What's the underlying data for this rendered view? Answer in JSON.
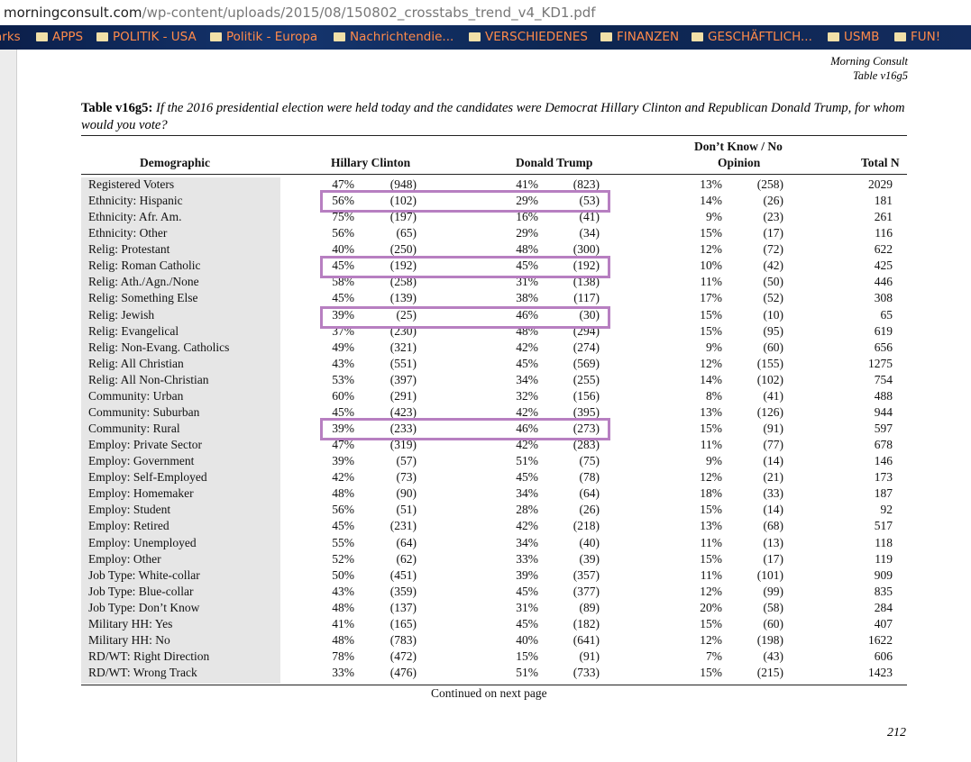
{
  "browser": {
    "url_domain": "morningconsult.com",
    "url_path": "/wp-content/uploads/2015/08/150802_crosstabs_trend_v4_KD1.pdf",
    "bookmarks": [
      "arks",
      "APPS",
      "POLITIK - USA",
      "Politik - Europa",
      "Nachrichtendie...",
      "VERSCHIEDENES",
      "FINANZEN",
      "GESCHÄFTLICH...",
      "USMB",
      "FUN!"
    ]
  },
  "header": {
    "org": "Morning Consult",
    "table_id": "Table v16g5"
  },
  "caption": {
    "label": "Table v16g5:",
    "text": "If the 2016 presidential election were held today and the candidates were Democrat Hillary Clinton and Republican Donald Trump, for whom would you vote?"
  },
  "table": {
    "columns": [
      "Demographic",
      "Hillary Clinton",
      "Donald Trump",
      "Don’t Know / No",
      "Opinion",
      "Total N"
    ],
    "rows": [
      [
        "Registered Voters",
        "47%",
        "(948)",
        "41%",
        "(823)",
        "13%",
        "(258)",
        "2029"
      ],
      [
        "Ethnicity: Hispanic",
        "56%",
        "(102)",
        "29%",
        "(53)",
        "14%",
        "(26)",
        "181"
      ],
      [
        "Ethnicity: Afr. Am.",
        "75%",
        "(197)",
        "16%",
        "(41)",
        "9%",
        "(23)",
        "261"
      ],
      [
        "Ethnicity: Other",
        "56%",
        "(65)",
        "29%",
        "(34)",
        "15%",
        "(17)",
        "116"
      ],
      [
        "Relig: Protestant",
        "40%",
        "(250)",
        "48%",
        "(300)",
        "12%",
        "(72)",
        "622"
      ],
      [
        "Relig: Roman Catholic",
        "45%",
        "(192)",
        "45%",
        "(192)",
        "10%",
        "(42)",
        "425"
      ],
      [
        "Relig: Ath./Agn./None",
        "58%",
        "(258)",
        "31%",
        "(138)",
        "11%",
        "(50)",
        "446"
      ],
      [
        "Relig: Something Else",
        "45%",
        "(139)",
        "38%",
        "(117)",
        "17%",
        "(52)",
        "308"
      ],
      [
        "Relig: Jewish",
        "39%",
        "(25)",
        "46%",
        "(30)",
        "15%",
        "(10)",
        "65"
      ],
      [
        "Relig: Evangelical",
        "37%",
        "(230)",
        "48%",
        "(294)",
        "15%",
        "(95)",
        "619"
      ],
      [
        "Relig: Non-Evang. Catholics",
        "49%",
        "(321)",
        "42%",
        "(274)",
        "9%",
        "(60)",
        "656"
      ],
      [
        "Relig: All Christian",
        "43%",
        "(551)",
        "45%",
        "(569)",
        "12%",
        "(155)",
        "1275"
      ],
      [
        "Relig: All Non-Christian",
        "53%",
        "(397)",
        "34%",
        "(255)",
        "14%",
        "(102)",
        "754"
      ],
      [
        "Community: Urban",
        "60%",
        "(291)",
        "32%",
        "(156)",
        "8%",
        "(41)",
        "488"
      ],
      [
        "Community: Suburban",
        "45%",
        "(423)",
        "42%",
        "(395)",
        "13%",
        "(126)",
        "944"
      ],
      [
        "Community: Rural",
        "39%",
        "(233)",
        "46%",
        "(273)",
        "15%",
        "(91)",
        "597"
      ],
      [
        "Employ: Private Sector",
        "47%",
        "(319)",
        "42%",
        "(283)",
        "11%",
        "(77)",
        "678"
      ],
      [
        "Employ: Government",
        "39%",
        "(57)",
        "51%",
        "(75)",
        "9%",
        "(14)",
        "146"
      ],
      [
        "Employ: Self-Employed",
        "42%",
        "(73)",
        "45%",
        "(78)",
        "12%",
        "(21)",
        "173"
      ],
      [
        "Employ: Homemaker",
        "48%",
        "(90)",
        "34%",
        "(64)",
        "18%",
        "(33)",
        "187"
      ],
      [
        "Employ: Student",
        "56%",
        "(51)",
        "28%",
        "(26)",
        "15%",
        "(14)",
        "92"
      ],
      [
        "Employ: Retired",
        "45%",
        "(231)",
        "42%",
        "(218)",
        "13%",
        "(68)",
        "517"
      ],
      [
        "Employ: Unemployed",
        "55%",
        "(64)",
        "34%",
        "(40)",
        "11%",
        "(13)",
        "118"
      ],
      [
        "Employ: Other",
        "52%",
        "(62)",
        "33%",
        "(39)",
        "15%",
        "(17)",
        "119"
      ],
      [
        "Job Type: White-collar",
        "50%",
        "(451)",
        "39%",
        "(357)",
        "11%",
        "(101)",
        "909"
      ],
      [
        "Job Type: Blue-collar",
        "43%",
        "(359)",
        "45%",
        "(377)",
        "12%",
        "(99)",
        "835"
      ],
      [
        "Job Type: Don’t Know",
        "48%",
        "(137)",
        "31%",
        "(89)",
        "20%",
        "(58)",
        "284"
      ],
      [
        "Military HH: Yes",
        "41%",
        "(165)",
        "45%",
        "(182)",
        "15%",
        "(60)",
        "407"
      ],
      [
        "Military HH: No",
        "48%",
        "(783)",
        "40%",
        "(641)",
        "12%",
        "(198)",
        "1622"
      ],
      [
        "RD/WT: Right Direction",
        "78%",
        "(472)",
        "15%",
        "(91)",
        "7%",
        "(43)",
        "606"
      ],
      [
        "RD/WT: Wrong Track",
        "33%",
        "(476)",
        "51%",
        "(733)",
        "15%",
        "(215)",
        "1423"
      ]
    ]
  },
  "footer": {
    "continued": "Continued on next page",
    "page": "212"
  }
}
